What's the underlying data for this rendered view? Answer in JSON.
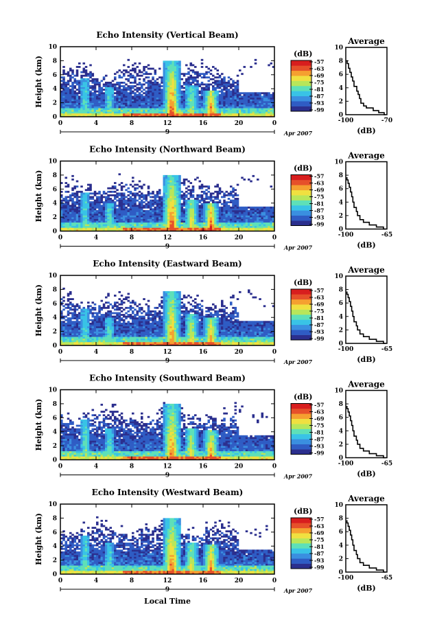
{
  "chart_data": [
    {
      "type": "heatmap",
      "title": "Echo Intensity (Vertical Beam)",
      "ylabel": "Height (km)",
      "ylim": [
        0,
        10
      ],
      "y_ticks": [
        "0",
        "2",
        "4",
        "6",
        "8",
        "10"
      ],
      "xlim": [
        0,
        24
      ],
      "x_ticks": [
        "0",
        "4",
        "8",
        "12",
        "16",
        "20",
        "0"
      ],
      "date_day": "9",
      "date_month": "Apr 2007",
      "colorbar": {
        "label": "(dB)",
        "ticks": [
          "-57",
          "-63",
          "-69",
          "-75",
          "-81",
          "-87",
          "-93",
          "-99"
        ]
      },
      "towers": [
        {
          "t": 2.8,
          "top": 5.4,
          "w": 0.5,
          "strength": 0.35
        },
        {
          "t": 5.5,
          "top": 4.2,
          "w": 0.5,
          "strength": 0.4
        },
        {
          "t": 12.5,
          "top": 8.1,
          "w": 0.9,
          "strength": 1.0
        },
        {
          "t": 14.7,
          "top": 4.5,
          "w": 0.7,
          "strength": 0.55
        },
        {
          "t": 16.9,
          "top": 3.8,
          "w": 0.8,
          "strength": 0.95
        }
      ],
      "profile": {
        "title": "Average",
        "xlabel": "(dB)",
        "xlim": [
          -100,
          -70
        ],
        "x_ticks": [
          "-100",
          "-70"
        ],
        "ylim": [
          0,
          10
        ],
        "y_ticks": [
          "0",
          "2",
          "4",
          "6",
          "8",
          "10"
        ],
        "x": [
          -71,
          -72,
          -76,
          -80,
          -85,
          -87,
          -89,
          -90,
          -91,
          -92,
          -94,
          -95,
          -96,
          -97,
          -98,
          -99
        ],
        "y": [
          0,
          0.3,
          0.6,
          1.0,
          1.3,
          1.7,
          2.4,
          3.0,
          3.5,
          4.2,
          5.0,
          5.6,
          6.3,
          6.9,
          7.6,
          8.1
        ]
      }
    },
    {
      "type": "heatmap",
      "title": "Echo Intensity (Northward Beam)",
      "ylabel": "Height (km)",
      "ylim": [
        0,
        10
      ],
      "y_ticks": [
        "0",
        "2",
        "4",
        "6",
        "8",
        "10"
      ],
      "xlim": [
        0,
        24
      ],
      "x_ticks": [
        "0",
        "4",
        "8",
        "12",
        "16",
        "20",
        "0"
      ],
      "date_day": "9",
      "date_month": "Apr 2007",
      "colorbar": {
        "label": "(dB)",
        "ticks": [
          "-57",
          "-63",
          "-69",
          "-75",
          "-81",
          "-87",
          "-93",
          "-99"
        ]
      },
      "towers": [
        {
          "t": 2.8,
          "top": 5.6,
          "w": 0.5,
          "strength": 0.4
        },
        {
          "t": 5.5,
          "top": 4.0,
          "w": 0.5,
          "strength": 0.45
        },
        {
          "t": 12.5,
          "top": 7.9,
          "w": 1.0,
          "strength": 1.0
        },
        {
          "t": 14.7,
          "top": 4.6,
          "w": 0.7,
          "strength": 0.75
        },
        {
          "t": 16.9,
          "top": 4.0,
          "w": 0.8,
          "strength": 1.0
        }
      ],
      "profile": {
        "title": "Average",
        "xlabel": "(dB)",
        "xlim": [
          -100,
          -65
        ],
        "x_ticks": [
          "-100",
          "-65"
        ],
        "ylim": [
          0,
          10
        ],
        "y_ticks": [
          "0",
          "2",
          "4",
          "6",
          "8",
          "10"
        ],
        "x": [
          -66,
          -68,
          -74,
          -80,
          -85,
          -88,
          -90,
          -91,
          -93,
          -94,
          -95,
          -96,
          -97,
          -98,
          -99
        ],
        "y": [
          0,
          0.3,
          0.6,
          1.0,
          1.4,
          2.0,
          2.6,
          3.2,
          4.0,
          4.8,
          5.5,
          6.2,
          6.8,
          7.3,
          7.7
        ]
      }
    },
    {
      "type": "heatmap",
      "title": "Echo Intensity (Eastward Beam)",
      "ylabel": "Height (km)",
      "ylim": [
        0,
        10
      ],
      "y_ticks": [
        "0",
        "2",
        "4",
        "6",
        "8",
        "10"
      ],
      "xlim": [
        0,
        24
      ],
      "x_ticks": [
        "0",
        "4",
        "8",
        "12",
        "16",
        "20",
        "0"
      ],
      "date_day": "9",
      "date_month": "Apr 2007",
      "colorbar": {
        "label": "(dB)",
        "ticks": [
          "-57",
          "-63",
          "-69",
          "-75",
          "-81",
          "-87",
          "-93",
          "-99"
        ]
      },
      "towers": [
        {
          "t": 2.8,
          "top": 5.2,
          "w": 0.5,
          "strength": 0.35
        },
        {
          "t": 5.5,
          "top": 4.0,
          "w": 0.5,
          "strength": 0.4
        },
        {
          "t": 12.5,
          "top": 7.8,
          "w": 0.9,
          "strength": 0.9
        },
        {
          "t": 14.7,
          "top": 4.4,
          "w": 0.7,
          "strength": 0.7
        },
        {
          "t": 16.9,
          "top": 4.0,
          "w": 0.8,
          "strength": 0.85
        }
      ],
      "profile": {
        "title": "Average",
        "xlabel": "(dB)",
        "xlim": [
          -100,
          -65
        ],
        "x_ticks": [
          "-100",
          "-65"
        ],
        "ylim": [
          0,
          10
        ],
        "y_ticks": [
          "0",
          "2",
          "4",
          "6",
          "8",
          "10"
        ],
        "x": [
          -66,
          -68,
          -74,
          -80,
          -85,
          -88,
          -90,
          -91,
          -93,
          -94,
          -95,
          -96,
          -97,
          -98,
          -99
        ],
        "y": [
          0,
          0.3,
          0.6,
          1.0,
          1.4,
          2.0,
          2.6,
          3.2,
          4.0,
          4.8,
          5.5,
          6.2,
          6.8,
          7.3,
          7.7
        ]
      }
    },
    {
      "type": "heatmap",
      "title": "Echo Intensity (Southward Beam)",
      "ylabel": "Height (km)",
      "ylim": [
        0,
        10
      ],
      "y_ticks": [
        "0",
        "2",
        "4",
        "6",
        "8",
        "10"
      ],
      "xlim": [
        0,
        24
      ],
      "x_ticks": [
        "0",
        "4",
        "8",
        "12",
        "16",
        "20",
        "0"
      ],
      "date_day": "9",
      "date_month": "Apr 2007",
      "colorbar": {
        "label": "(dB)",
        "ticks": [
          "-57",
          "-63",
          "-69",
          "-75",
          "-81",
          "-87",
          "-93",
          "-99"
        ]
      },
      "towers": [
        {
          "t": 2.8,
          "top": 5.8,
          "w": 0.5,
          "strength": 0.45
        },
        {
          "t": 5.5,
          "top": 4.4,
          "w": 0.5,
          "strength": 0.45
        },
        {
          "t": 12.5,
          "top": 8.0,
          "w": 1.0,
          "strength": 0.9
        },
        {
          "t": 14.7,
          "top": 4.6,
          "w": 0.7,
          "strength": 0.7
        },
        {
          "t": 16.9,
          "top": 4.2,
          "w": 0.8,
          "strength": 0.85
        }
      ],
      "profile": {
        "title": "Average",
        "xlabel": "(dB)",
        "xlim": [
          -100,
          -65
        ],
        "x_ticks": [
          "-100",
          "-65"
        ],
        "ylim": [
          0,
          10
        ],
        "y_ticks": [
          "0",
          "2",
          "4",
          "6",
          "8",
          "10"
        ],
        "x": [
          -66,
          -68,
          -74,
          -80,
          -85,
          -88,
          -90,
          -91,
          -93,
          -94,
          -95,
          -96,
          -97,
          -98,
          -99
        ],
        "y": [
          0,
          0.3,
          0.6,
          1.0,
          1.4,
          2.0,
          2.6,
          3.2,
          4.0,
          4.8,
          5.5,
          6.2,
          6.8,
          7.3,
          7.7
        ]
      }
    },
    {
      "type": "heatmap",
      "title": "Echo Intensity (Westward Beam)",
      "ylabel": "Height (km)",
      "ylim": [
        0,
        10
      ],
      "y_ticks": [
        "0",
        "2",
        "4",
        "6",
        "8",
        "10"
      ],
      "xlim": [
        0,
        24
      ],
      "x_ticks": [
        "0",
        "4",
        "8",
        "12",
        "16",
        "20",
        "0"
      ],
      "date_day": "9",
      "date_month": "Apr 2007",
      "colorbar": {
        "label": "(dB)",
        "ticks": [
          "-57",
          "-63",
          "-69",
          "-75",
          "-81",
          "-87",
          "-93",
          "-99"
        ]
      },
      "towers": [
        {
          "t": 2.8,
          "top": 5.4,
          "w": 0.5,
          "strength": 0.4
        },
        {
          "t": 5.5,
          "top": 4.4,
          "w": 0.5,
          "strength": 0.4
        },
        {
          "t": 12.5,
          "top": 8.0,
          "w": 1.0,
          "strength": 0.95
        },
        {
          "t": 14.7,
          "top": 4.6,
          "w": 0.7,
          "strength": 0.7
        },
        {
          "t": 16.9,
          "top": 4.2,
          "w": 0.8,
          "strength": 0.95
        }
      ],
      "profile": {
        "title": "Average",
        "xlabel": "(dB)",
        "xlim": [
          -100,
          -65
        ],
        "x_ticks": [
          "-100",
          "-65"
        ],
        "ylim": [
          0,
          10
        ],
        "y_ticks": [
          "0",
          "2",
          "4",
          "6",
          "8",
          "10"
        ],
        "x": [
          -66,
          -68,
          -74,
          -80,
          -85,
          -88,
          -90,
          -91,
          -93,
          -94,
          -95,
          -96,
          -97,
          -98,
          -99
        ],
        "y": [
          0,
          0.3,
          0.6,
          1.0,
          1.4,
          2.0,
          2.6,
          3.2,
          4.0,
          4.8,
          5.5,
          6.2,
          6.8,
          7.3,
          7.7
        ]
      }
    }
  ],
  "figure": {
    "xlabel": "Local Time"
  },
  "colormap": [
    "#2b2f8e",
    "#2f5cc4",
    "#3a8fe0",
    "#39c3e6",
    "#5ee0b8",
    "#b8e65a",
    "#f0e040",
    "#f5a030",
    "#e6502a",
    "#d81e1e"
  ]
}
